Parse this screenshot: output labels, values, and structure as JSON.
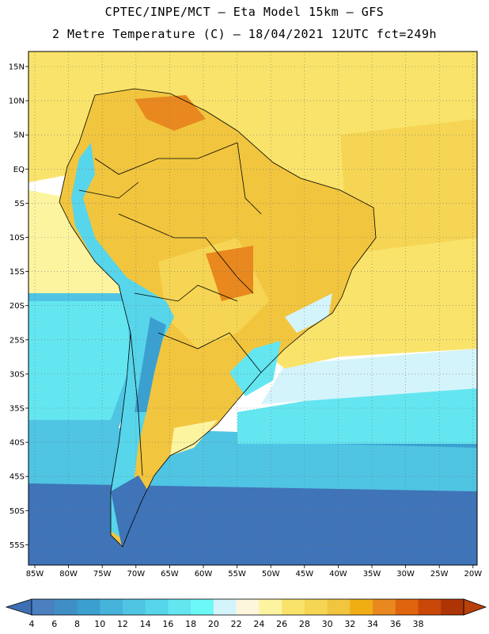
{
  "title_line1": "CPTEC/INPE/MCT –  Eta Model 15km – GFS",
  "title_line2": "2 Metre Temperature (C) – 18/04/2021 12UTC fct=249h",
  "lat_labels": [
    "15N",
    "10N",
    "5N",
    "EQ",
    "5S",
    "10S",
    "15S",
    "20S",
    "25S",
    "30S",
    "35S",
    "40S",
    "45S",
    "50S",
    "55S"
  ],
  "lon_labels": [
    "85W",
    "80W",
    "75W",
    "70W",
    "65W",
    "60W",
    "55W",
    "50W",
    "45W",
    "40W",
    "35W",
    "30W",
    "25W",
    "20W"
  ],
  "colorbar": {
    "labels": [
      "4",
      "6",
      "8",
      "10",
      "12",
      "14",
      "16",
      "18",
      "20",
      "22",
      "24",
      "26",
      "28",
      "30",
      "32",
      "34",
      "36",
      "38"
    ],
    "colors": [
      "#4a7fc0",
      "#3f8fc6",
      "#3ba0cf",
      "#46b3da",
      "#4fc4e3",
      "#57d5ea",
      "#63e6f0",
      "#6df8f8",
      "#d4f4fb",
      "#fdf6dc",
      "#fdf4a0",
      "#f9e36a",
      "#f5d553",
      "#f1c53e",
      "#f0ae14",
      "#e8881f",
      "#e0640d",
      "#c94708",
      "#ad3405"
    ],
    "low_arrow_color": "#3d6fb3",
    "high_arrow_color": "#b8400a"
  },
  "colors": {
    "land_hot": "#f1c53e",
    "land_warm": "#f5d553",
    "land_very_hot": "#e8881f",
    "ocean_warm": "#f9e36a",
    "ocean_mild": "#fdf4a0",
    "ocean_cool": "#63e6f0",
    "ocean_cold": "#3ba0cf",
    "ocean_colder": "#3f74b8",
    "andes": "#57d5ea"
  }
}
